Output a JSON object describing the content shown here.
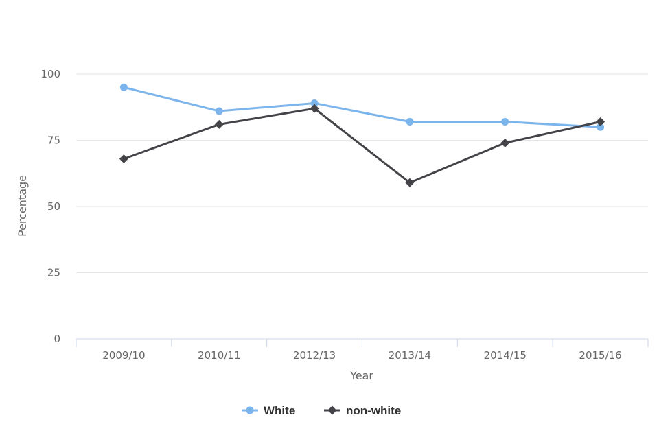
{
  "chart_data": {
    "type": "line",
    "categories": [
      "2009/10",
      "2010/11",
      "2012/13",
      "2013/14",
      "2014/15",
      "2015/16"
    ],
    "series": [
      {
        "name": "White",
        "values": [
          95,
          86,
          89,
          82,
          82,
          80
        ],
        "color": "#7cb5ec",
        "marker": "circle"
      },
      {
        "name": "non-white",
        "values": [
          68,
          81,
          87,
          59,
          74,
          82
        ],
        "color": "#434348",
        "marker": "diamond"
      }
    ],
    "title": "",
    "xlabel": "Year",
    "ylabel": "Percentage",
    "ylim": [
      0,
      100
    ],
    "yticks": [
      0,
      25,
      50,
      75,
      100
    ],
    "grid": true,
    "legend": "bottom-center"
  }
}
